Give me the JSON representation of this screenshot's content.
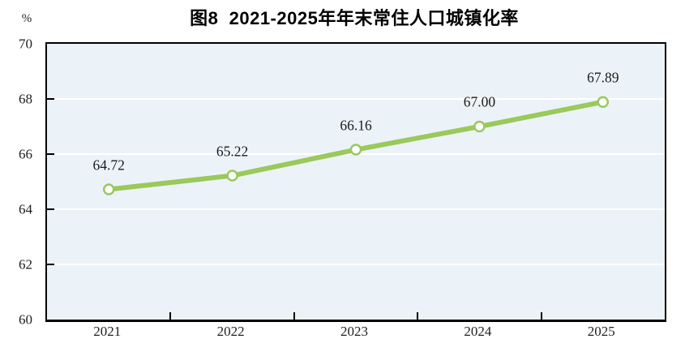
{
  "title": "图8  2021-2025年年末常住人口城镇化率",
  "unit_label": "%",
  "colors": {
    "line": "#9AC95C",
    "marker_fill": "#FFFFFF",
    "plot_bg": "#ECF3F8",
    "grid": "#FFFFFF",
    "axis": "#000000",
    "text": "#222222"
  },
  "chart_data": {
    "type": "line",
    "title": "图8  2021-2025年年末常住人口城镇化率",
    "categories": [
      "2021",
      "2022",
      "2023",
      "2024",
      "2025"
    ],
    "values": [
      64.72,
      65.22,
      66.16,
      67.0,
      67.89
    ],
    "data_labels": [
      "64.72",
      "65.22",
      "66.16",
      "67.00",
      "67.89"
    ],
    "ylabel": "%",
    "xlabel": "",
    "ylim": [
      60,
      70
    ],
    "yticks": [
      60,
      62,
      64,
      66,
      68,
      70
    ],
    "grid": "horizontal-white",
    "legend_position": "none",
    "marker": "circle-open",
    "data_label_position": "above"
  }
}
